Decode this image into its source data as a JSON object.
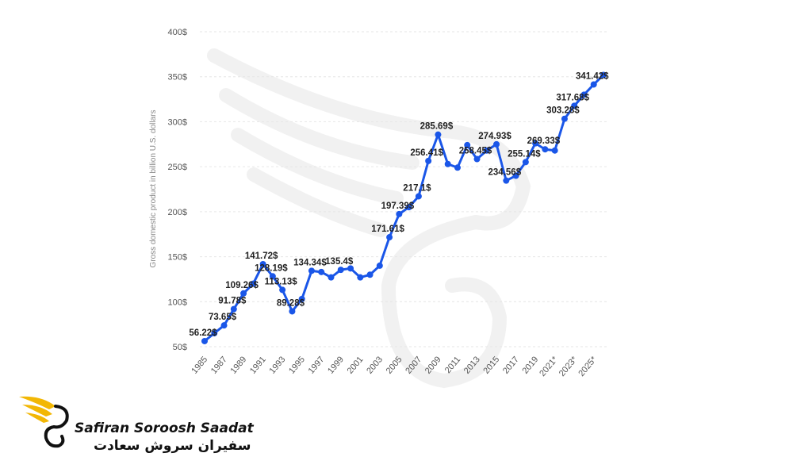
{
  "chart_data": {
    "type": "line",
    "ylabel": "Gross domestic product in billion U.S. dollars",
    "ylim": [
      50,
      400
    ],
    "yticks": [
      "50$",
      "100$",
      "150$",
      "200$",
      "250$",
      "300$",
      "350$",
      "400$"
    ],
    "xtick_labels": [
      "1985",
      "1987",
      "1989",
      "1991",
      "1993",
      "1995",
      "1997",
      "1999",
      "2001",
      "2003",
      "2005",
      "2007",
      "2009",
      "2011",
      "2013",
      "2015",
      "2017",
      "2019",
      "2021*",
      "2023*",
      "2025*"
    ],
    "color": "#1a56e8",
    "grid": true,
    "points": [
      {
        "x": "1985",
        "y": 56.22,
        "label": "56.22$"
      },
      {
        "x": "1986",
        "y": 65
      },
      {
        "x": "1987",
        "y": 73.65,
        "label": "73.65$"
      },
      {
        "x": "1988",
        "y": 91.78,
        "label": "91.78$"
      },
      {
        "x": "1989",
        "y": 109.26,
        "label": "109.26$"
      },
      {
        "x": "1990",
        "y": 120
      },
      {
        "x": "1991",
        "y": 141.72,
        "label": "141.72$"
      },
      {
        "x": "1992",
        "y": 128.19,
        "label": "128.19$"
      },
      {
        "x": "1993",
        "y": 113.13,
        "label": "113.13$"
      },
      {
        "x": "1994",
        "y": 89.28,
        "label": "89.28$"
      },
      {
        "x": "1995",
        "y": 103
      },
      {
        "x": "1996",
        "y": 134.34,
        "label": "134.34$"
      },
      {
        "x": "1997",
        "y": 133
      },
      {
        "x": "1998",
        "y": 127
      },
      {
        "x": "1999",
        "y": 135.4,
        "label": "135.4$"
      },
      {
        "x": "2000",
        "y": 137
      },
      {
        "x": "2001",
        "y": 127
      },
      {
        "x": "2002",
        "y": 130
      },
      {
        "x": "2003",
        "y": 140
      },
      {
        "x": "2004",
        "y": 171.61,
        "label": "171.61$"
      },
      {
        "x": "2005",
        "y": 197.39,
        "label": "197.39$"
      },
      {
        "x": "2006",
        "y": 205
      },
      {
        "x": "2007",
        "y": 217.1,
        "label": "217.1$"
      },
      {
        "x": "2008",
        "y": 256.41,
        "label": "256.41$"
      },
      {
        "x": "2009",
        "y": 285.69,
        "label": "285.69$"
      },
      {
        "x": "2010",
        "y": 253
      },
      {
        "x": "2011",
        "y": 249
      },
      {
        "x": "2012",
        "y": 274
      },
      {
        "x": "2013",
        "y": 258.45,
        "label": "258.45$"
      },
      {
        "x": "2014",
        "y": 268
      },
      {
        "x": "2015",
        "y": 274.93,
        "label": "274.93$"
      },
      {
        "x": "2016",
        "y": 234.56,
        "label": "234.56$"
      },
      {
        "x": "2017",
        "y": 240
      },
      {
        "x": "2018",
        "y": 255.14,
        "label": "255.14$"
      },
      {
        "x": "2019",
        "y": 276
      },
      {
        "x": "2020",
        "y": 269.33,
        "label": "269.33$"
      },
      {
        "x": "2021",
        "y": 268
      },
      {
        "x": "2022",
        "y": 303.28,
        "label": "303.28$"
      },
      {
        "x": "2023",
        "y": 317.68,
        "label": "317.68$"
      },
      {
        "x": "2024",
        "y": 330
      },
      {
        "x": "2025",
        "y": 341.42,
        "label": "341.42$"
      },
      {
        "x": "2026",
        "y": 352
      }
    ]
  },
  "brand": {
    "name_en": "Safiran Soroosh Saadat",
    "name_fa": "سفیران سروش سعادت",
    "icon": "wing-logo-icon",
    "colors": {
      "gold": "#f2b705",
      "dark": "#111111"
    }
  }
}
